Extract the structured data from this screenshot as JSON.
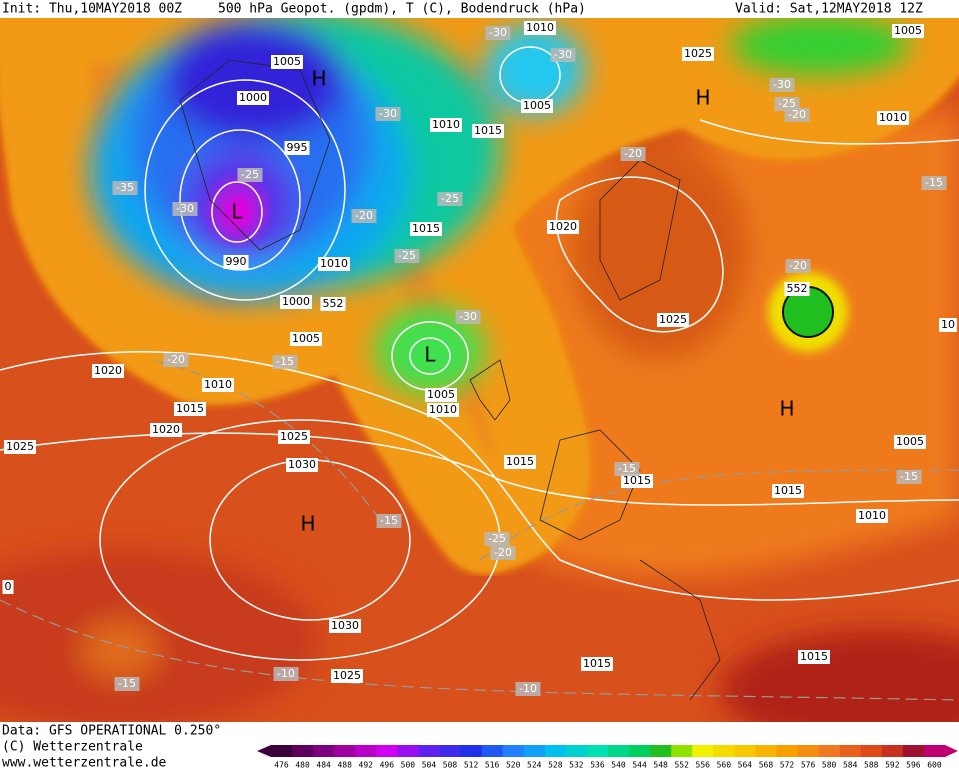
{
  "header": {
    "init": "Init: Thu,10MAY2018 00Z",
    "title": "500 hPa Geopot. (gpdm), T (C), Bodendruck (hPa)",
    "valid": "Valid: Sat,12MAY2018 12Z"
  },
  "map": {
    "isobar_labels": [
      "1005",
      "1000",
      "995",
      "990",
      "1010",
      "1000",
      "1005",
      "1010",
      "1015",
      "1020",
      "1020",
      "1025",
      "1025",
      "1030",
      "1030",
      "1025",
      "1015",
      "1015",
      "1010",
      "1005",
      "1015",
      "1015",
      "1015",
      "1010",
      "1005",
      "1015",
      "1010",
      "1015",
      "1005",
      "1010",
      "1025",
      "1005",
      "1010",
      "1020",
      "1025",
      "552",
      "552",
      "0",
      "10"
    ],
    "temperature_labels": [
      "-30",
      "-30",
      "-30",
      "-35",
      "-30",
      "-25",
      "-25",
      "-20",
      "-25",
      "-30",
      "-20",
      "-15",
      "-30",
      "-25",
      "-20",
      "-20",
      "-15",
      "-20",
      "-15",
      "-15",
      "-25",
      "-20",
      "-15",
      "-10",
      "-15",
      "-10"
    ],
    "pressure_centers": [
      "H",
      "L",
      "L",
      "H",
      "H",
      "H"
    ]
  },
  "footer": {
    "data": "Data: GFS OPERATIONAL 0.250°",
    "copyright": "(C) Wetterzentrale",
    "url": "www.wetterzentrale.de"
  },
  "colorbar": {
    "labels": [
      476,
      480,
      484,
      488,
      492,
      496,
      500,
      504,
      508,
      512,
      516,
      520,
      524,
      528,
      532,
      536,
      540,
      544,
      548,
      552,
      556,
      560,
      564,
      568,
      572,
      576,
      580,
      584,
      588,
      592,
      596,
      600
    ]
  }
}
